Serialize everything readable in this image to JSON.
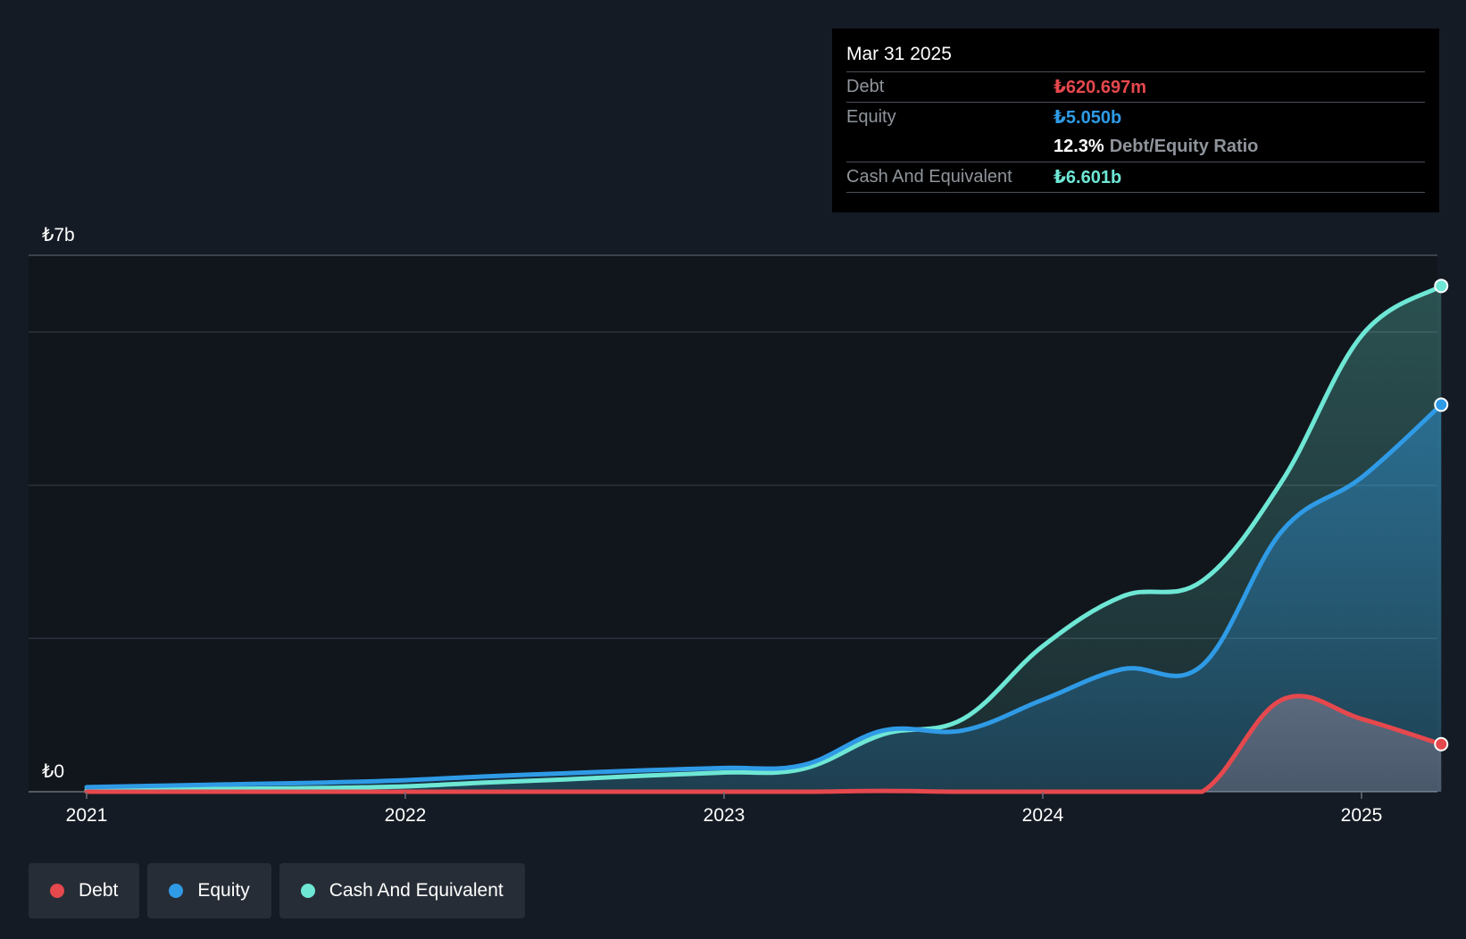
{
  "tooltip": {
    "date": "Mar 31 2025",
    "debt_label": "Debt",
    "debt_value": "₺620.697m",
    "equity_label": "Equity",
    "equity_value": "₺5.050b",
    "ratio_value": "12.3%",
    "ratio_label": "Debt/Equity Ratio",
    "cash_label": "Cash And Equivalent",
    "cash_value": "₺6.601b"
  },
  "legend": [
    {
      "label": "Debt",
      "color": "#e5484d"
    },
    {
      "label": "Equity",
      "color": "#2f9be6"
    },
    {
      "label": "Cash And Equivalent",
      "color": "#6ee7d5"
    }
  ],
  "colors": {
    "background": "#151b24",
    "debt": "#e5484d",
    "equity": "#2f9be6",
    "cash": "#6ee7d5",
    "grid": "#2c323b"
  },
  "chart_data": {
    "type": "area",
    "title": "",
    "xlabel": "",
    "ylabel": "",
    "y_axis_labels": [
      "₺7b",
      "₺0"
    ],
    "ylim": [
      0,
      7
    ],
    "x_tick_labels": [
      "2021",
      "2022",
      "2023",
      "2024",
      "2025"
    ],
    "x_ticks": [
      2021,
      2022,
      2023,
      2024,
      2025
    ],
    "xlim": [
      2021.0,
      2025.25
    ],
    "grid": true,
    "legend_position": "bottom-left",
    "series": [
      {
        "name": "Cash And Equivalent",
        "color": "#6ee7d5",
        "x": [
          2021.0,
          2021.25,
          2021.5,
          2021.75,
          2022.0,
          2022.25,
          2022.5,
          2022.75,
          2023.0,
          2023.25,
          2023.5,
          2023.75,
          2024.0,
          2024.25,
          2024.5,
          2024.75,
          2025.0,
          2025.25
        ],
        "y": [
          0.02,
          0.03,
          0.04,
          0.05,
          0.07,
          0.12,
          0.16,
          0.21,
          0.25,
          0.3,
          0.75,
          0.95,
          1.9,
          2.55,
          2.75,
          4.05,
          5.95,
          6.6
        ]
      },
      {
        "name": "Equity",
        "color": "#2f9be6",
        "x": [
          2021.0,
          2021.25,
          2021.5,
          2021.75,
          2022.0,
          2022.25,
          2022.5,
          2022.75,
          2023.0,
          2023.25,
          2023.5,
          2023.75,
          2024.0,
          2024.25,
          2024.5,
          2024.75,
          2025.0,
          2025.25
        ],
        "y": [
          0.06,
          0.08,
          0.1,
          0.12,
          0.15,
          0.2,
          0.24,
          0.28,
          0.31,
          0.35,
          0.8,
          0.8,
          1.2,
          1.6,
          1.65,
          3.4,
          4.1,
          5.05
        ]
      },
      {
        "name": "Debt",
        "color": "#e5484d",
        "x": [
          2021.0,
          2021.25,
          2021.5,
          2021.75,
          2022.0,
          2022.25,
          2022.5,
          2022.75,
          2023.0,
          2023.25,
          2023.5,
          2023.75,
          2024.0,
          2024.25,
          2024.5,
          2024.75,
          2025.0,
          2025.25
        ],
        "y": [
          0.0,
          0.0,
          0.0,
          0.0,
          0.0,
          0.0,
          0.0,
          0.0,
          0.0,
          0.0,
          0.01,
          0.0,
          0.0,
          0.0,
          0.0,
          1.2,
          0.95,
          0.62
        ]
      }
    ]
  }
}
